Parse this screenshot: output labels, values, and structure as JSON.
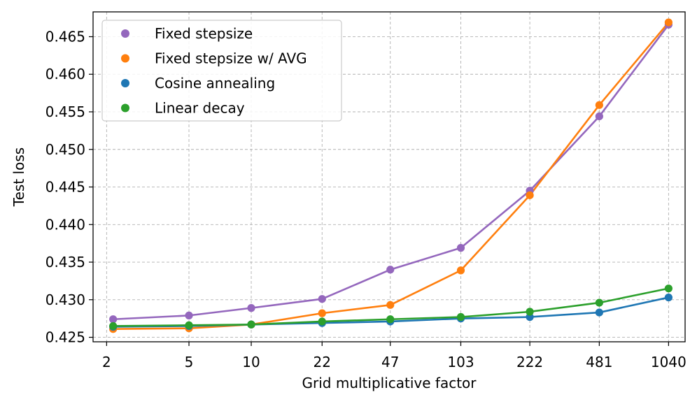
{
  "chart_data": {
    "type": "line",
    "title": "",
    "xlabel": "Grid multiplicative factor",
    "ylabel": "Test loss",
    "x_scale": "log",
    "x_ticks": [
      2,
      5,
      10,
      22,
      47,
      103,
      222,
      481,
      1040
    ],
    "x_tick_labels": [
      "2",
      "5",
      "10",
      "22",
      "47",
      "103",
      "222",
      "481",
      "1040"
    ],
    "x": [
      2.15,
      5,
      10,
      22,
      47,
      103,
      222,
      481,
      1040
    ],
    "xlim": [
      1.72,
      1250
    ],
    "y_ticks": [
      0.425,
      0.43,
      0.435,
      0.44,
      0.445,
      0.45,
      0.455,
      0.46,
      0.465
    ],
    "y_tick_labels": [
      "0.425",
      "0.430",
      "0.435",
      "0.440",
      "0.445",
      "0.450",
      "0.455",
      "0.460",
      "0.465"
    ],
    "ylim": [
      0.4244,
      0.4683
    ],
    "grid": true,
    "legend_position": "top-left",
    "series": [
      {
        "name": "Fixed stepsize",
        "color": "#9467bd",
        "values": [
          0.4274,
          0.4279,
          0.4289,
          0.4301,
          0.434,
          0.4369,
          0.4445,
          0.4544,
          0.4666
        ]
      },
      {
        "name": "Fixed stepsize w/ AVG",
        "color": "#ff7f0e",
        "values": [
          0.4261,
          0.4262,
          0.4267,
          0.4282,
          0.4293,
          0.4339,
          0.4439,
          0.4559,
          0.4669
        ]
      },
      {
        "name": "Cosine annealing",
        "color": "#1f77b4",
        "values": [
          0.4264,
          0.4265,
          0.4267,
          0.4269,
          0.4271,
          0.4275,
          0.4277,
          0.4283,
          0.4303
        ]
      },
      {
        "name": "Linear decay",
        "color": "#2ca02c",
        "values": [
          0.4265,
          0.4266,
          0.4267,
          0.4271,
          0.4274,
          0.4277,
          0.4284,
          0.4296,
          0.4315
        ]
      }
    ]
  }
}
